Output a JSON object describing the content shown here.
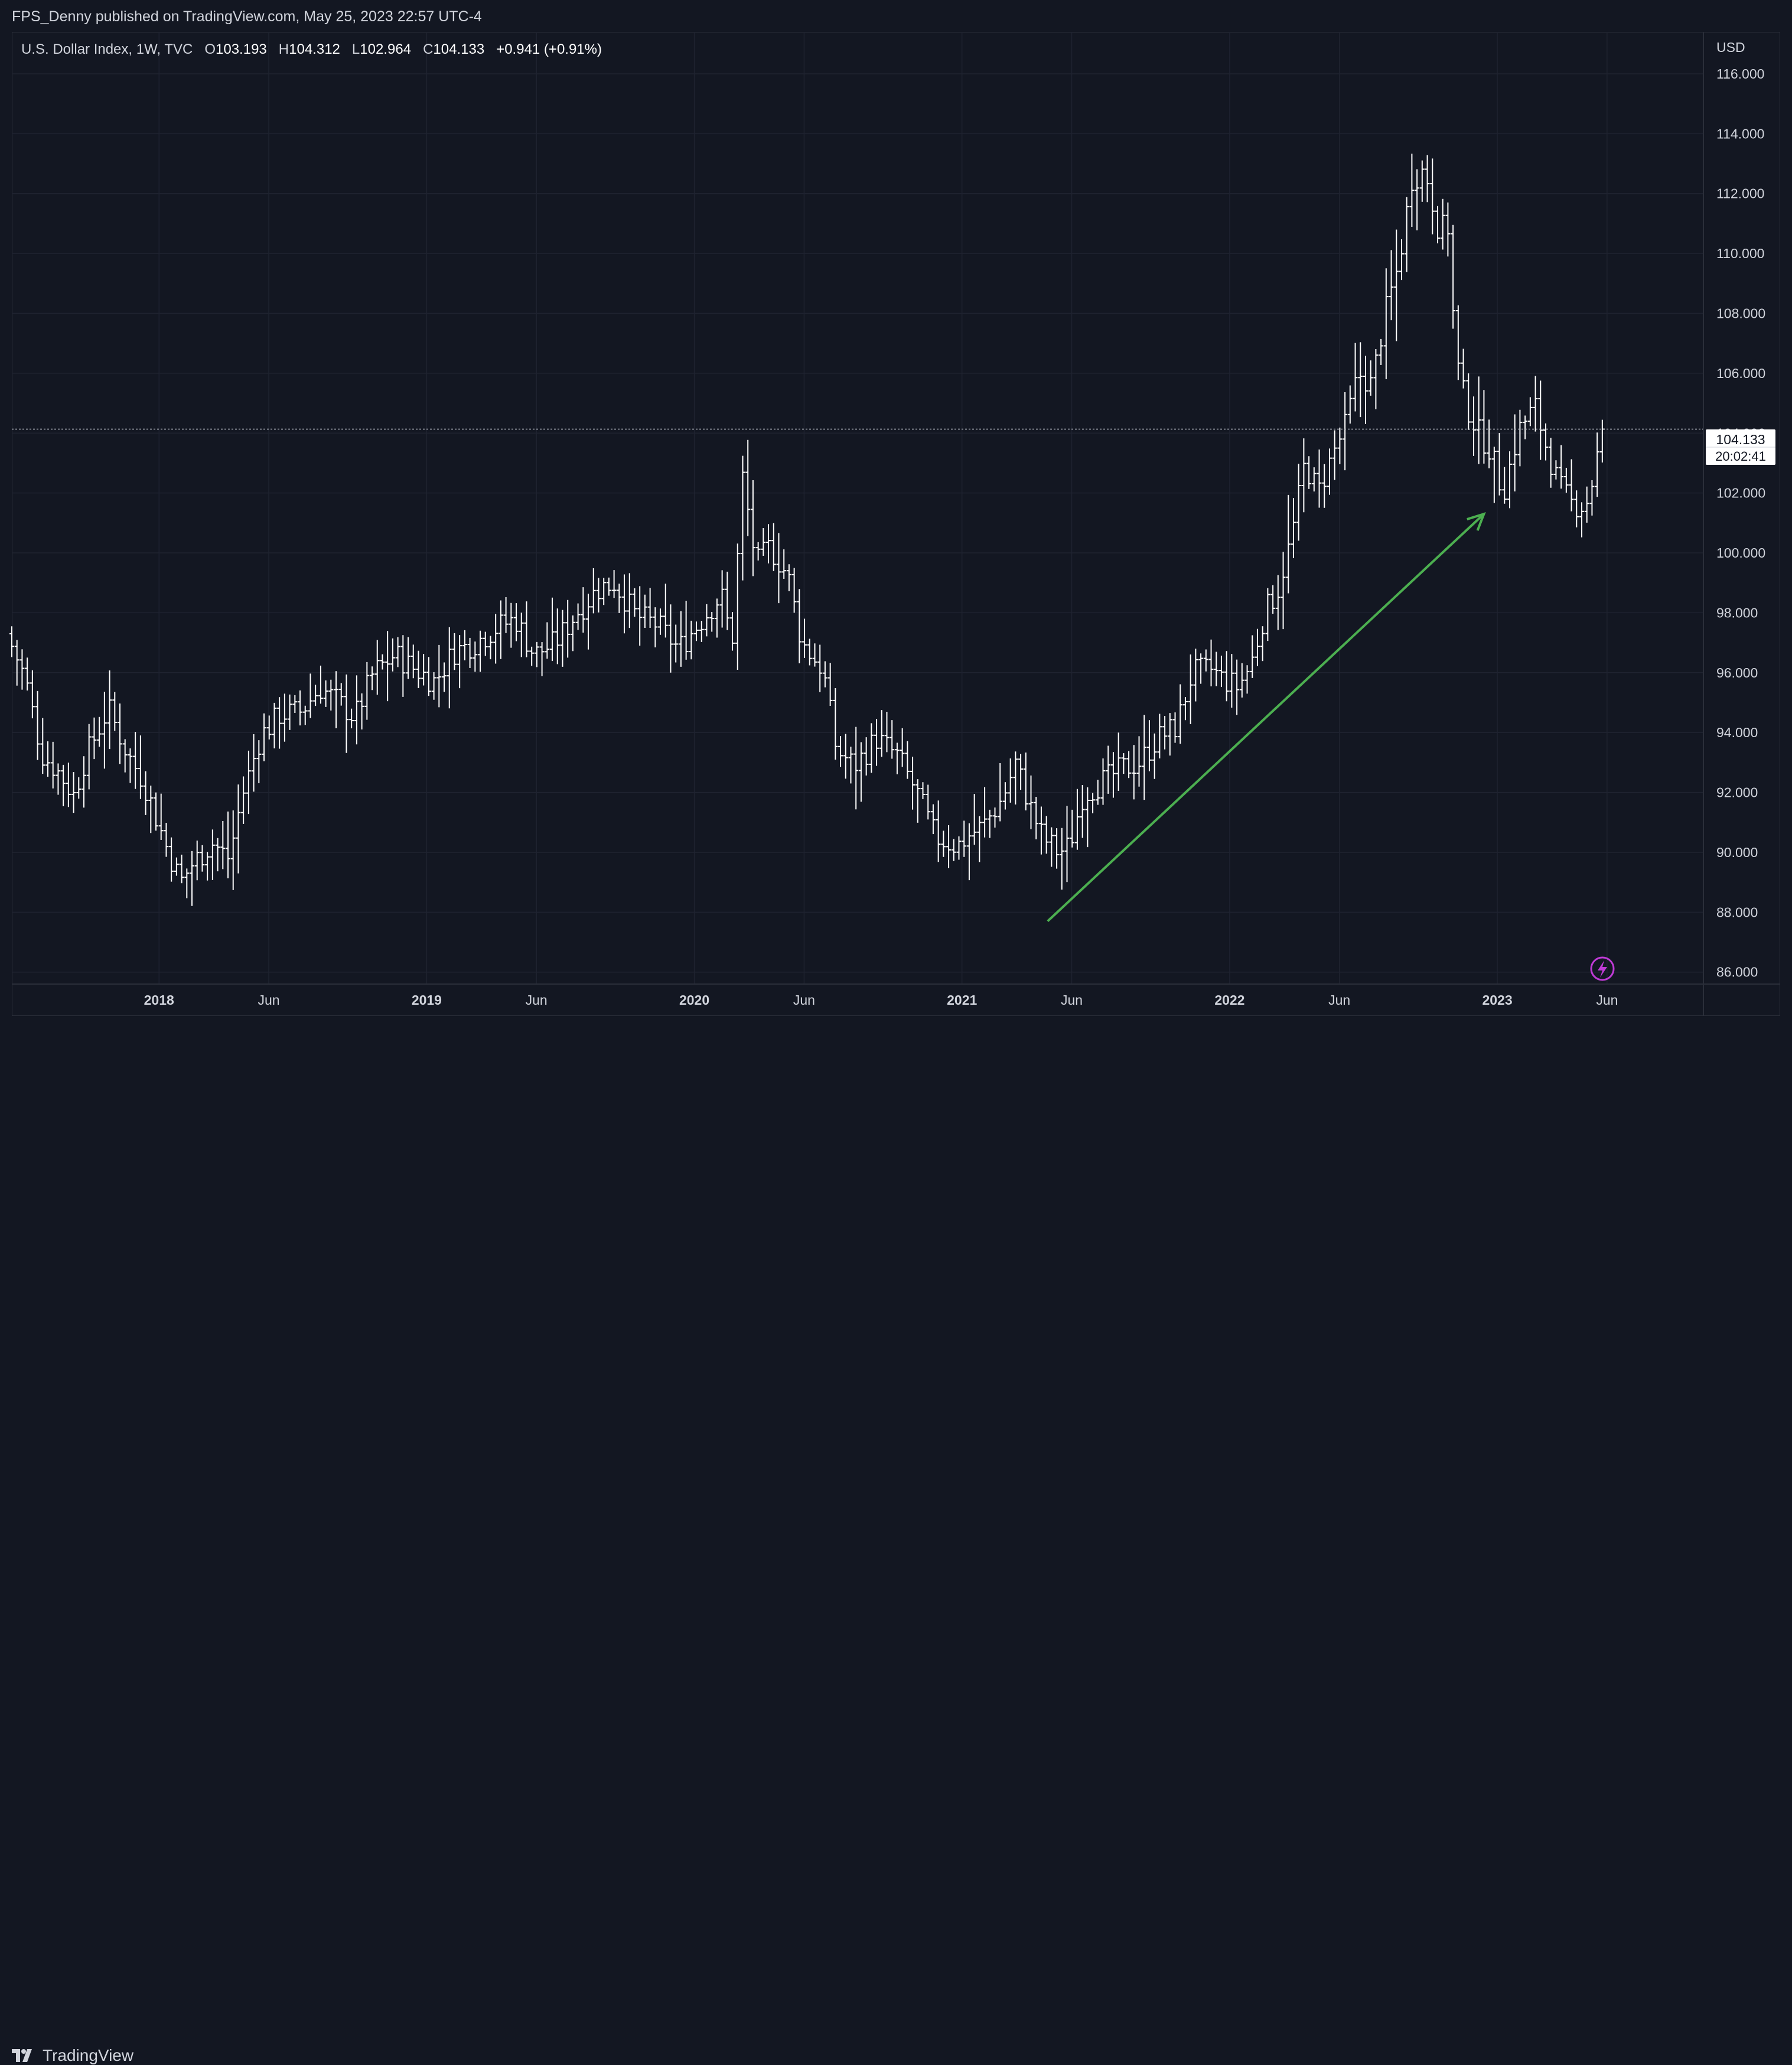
{
  "header": {
    "published": "FPS_Denny published on TradingView.com, May 25, 2023 22:57 UTC-4"
  },
  "legend": {
    "symbol": "U.S. Dollar Index, 1W, TVC",
    "o_label": "O",
    "o_value": "103.193",
    "h_label": "H",
    "h_value": "104.312",
    "l_label": "L",
    "l_value": "102.964",
    "c_label": "C",
    "c_value": "104.133",
    "change": "+0.941 (+0.91%)"
  },
  "price_axis": {
    "currency": "USD",
    "last_price": "104.133",
    "countdown": "20:02:41"
  },
  "footer": {
    "brand": "TradingView"
  },
  "colors": {
    "background": "#131722",
    "bars": "#ffffff",
    "grid": "#1f2330",
    "arrow": "#4caf50",
    "last_price_line": "#b2b5be"
  },
  "chart_data": {
    "type": "ohlc",
    "title": "U.S. Dollar Index, 1W, TVC",
    "ylim": [
      85.6,
      117.4
    ],
    "y_ticks": [
      "116.000",
      "114.000",
      "112.000",
      "110.000",
      "108.000",
      "106.000",
      "104.000",
      "102.000",
      "100.000",
      "98.000",
      "96.000",
      "94.000",
      "92.000",
      "90.000",
      "88.000",
      "86.000"
    ],
    "x_ticks": [
      {
        "t": 2018.0,
        "label": "2018",
        "major": true
      },
      {
        "t": 2018.41,
        "label": "Jun",
        "major": false
      },
      {
        "t": 2019.0,
        "label": "2019",
        "major": true
      },
      {
        "t": 2019.41,
        "label": "Jun",
        "major": false
      },
      {
        "t": 2020.0,
        "label": "2020",
        "major": true
      },
      {
        "t": 2020.41,
        "label": "Jun",
        "major": false
      },
      {
        "t": 2021.0,
        "label": "2021",
        "major": true
      },
      {
        "t": 2021.41,
        "label": "Jun",
        "major": false
      },
      {
        "t": 2022.0,
        "label": "2022",
        "major": true
      },
      {
        "t": 2022.41,
        "label": "Jun",
        "major": false
      },
      {
        "t": 2023.0,
        "label": "2023",
        "major": true
      },
      {
        "t": 2023.41,
        "label": "Jun",
        "major": false
      }
    ],
    "xlim": [
      2017.45,
      2023.77
    ],
    "last_close": 104.133,
    "annotation": {
      "type": "arrow",
      "from": [
        2021.32,
        87.7
      ],
      "to": [
        2022.95,
        101.3
      ]
    },
    "keypoints": [
      [
        2017.45,
        97.3
      ],
      [
        2017.52,
        95.8
      ],
      [
        2017.58,
        93.3
      ],
      [
        2017.65,
        92.6
      ],
      [
        2017.7,
        91.9
      ],
      [
        2017.75,
        93.3
      ],
      [
        2017.83,
        94.8
      ],
      [
        2017.9,
        93.3
      ],
      [
        2017.96,
        92.4
      ],
      [
        2018.05,
        90.1
      ],
      [
        2018.1,
        89.0
      ],
      [
        2018.15,
        89.7
      ],
      [
        2018.22,
        90.3
      ],
      [
        2018.28,
        89.8
      ],
      [
        2018.33,
        91.9
      ],
      [
        2018.4,
        93.9
      ],
      [
        2018.47,
        94.6
      ],
      [
        2018.55,
        94.7
      ],
      [
        2018.62,
        95.5
      ],
      [
        2018.68,
        95.1
      ],
      [
        2018.75,
        94.5
      ],
      [
        2018.82,
        96.0
      ],
      [
        2018.9,
        96.6
      ],
      [
        2018.96,
        96.2
      ],
      [
        2019.05,
        95.7
      ],
      [
        2019.12,
        96.7
      ],
      [
        2019.2,
        97.0
      ],
      [
        2019.28,
        97.5
      ],
      [
        2019.35,
        97.8
      ],
      [
        2019.42,
        96.6
      ],
      [
        2019.5,
        97.0
      ],
      [
        2019.58,
        98.0
      ],
      [
        2019.66,
        98.8
      ],
      [
        2019.72,
        99.0
      ],
      [
        2019.8,
        97.9
      ],
      [
        2019.88,
        97.6
      ],
      [
        2019.96,
        96.8
      ],
      [
        2020.05,
        97.8
      ],
      [
        2020.12,
        98.6
      ],
      [
        2020.16,
        97.0
      ],
      [
        2020.2,
        102.5
      ],
      [
        2020.25,
        99.6
      ],
      [
        2020.3,
        100.2
      ],
      [
        2020.37,
        99.2
      ],
      [
        2020.42,
        97.0
      ],
      [
        2020.5,
        96.1
      ],
      [
        2020.55,
        93.4
      ],
      [
        2020.62,
        92.9
      ],
      [
        2020.7,
        93.8
      ],
      [
        2020.78,
        93.2
      ],
      [
        2020.85,
        92.0
      ],
      [
        2020.92,
        90.5
      ],
      [
        2021.0,
        90.2
      ],
      [
        2021.05,
        90.6
      ],
      [
        2021.1,
        90.9
      ],
      [
        2021.17,
        91.8
      ],
      [
        2021.22,
        93.0
      ],
      [
        2021.27,
        91.6
      ],
      [
        2021.32,
        90.5
      ],
      [
        2021.38,
        90.0
      ],
      [
        2021.42,
        90.2
      ],
      [
        2021.47,
        91.9
      ],
      [
        2021.55,
        92.4
      ],
      [
        2021.62,
        92.8
      ],
      [
        2021.68,
        93.0
      ],
      [
        2021.75,
        93.8
      ],
      [
        2021.82,
        94.2
      ],
      [
        2021.88,
        96.0
      ],
      [
        2021.95,
        96.1
      ],
      [
        2021.99,
        95.8
      ],
      [
        2022.05,
        95.5
      ],
      [
        2022.1,
        96.3
      ],
      [
        2022.15,
        98.0
      ],
      [
        2022.2,
        98.8
      ],
      [
        2022.25,
        100.5
      ],
      [
        2022.3,
        103.0
      ],
      [
        2022.35,
        102.0
      ],
      [
        2022.4,
        103.2
      ],
      [
        2022.45,
        104.2
      ],
      [
        2022.5,
        106.0
      ],
      [
        2022.55,
        105.6
      ],
      [
        2022.6,
        108.0
      ],
      [
        2022.65,
        109.6
      ],
      [
        2022.7,
        112.5
      ],
      [
        2022.75,
        112.8
      ],
      [
        2022.8,
        110.8
      ],
      [
        2022.84,
        110.9
      ],
      [
        2022.86,
        106.7
      ],
      [
        2022.9,
        105.0
      ],
      [
        2022.95,
        104.0
      ],
      [
        2022.99,
        103.5
      ],
      [
        2023.04,
        102.0
      ],
      [
        2023.1,
        104.1
      ],
      [
        2023.16,
        104.9
      ],
      [
        2023.2,
        103.6
      ],
      [
        2023.25,
        102.2
      ],
      [
        2023.3,
        101.6
      ],
      [
        2023.35,
        101.6
      ],
      [
        2023.38,
        102.6
      ],
      [
        2023.41,
        104.13
      ]
    ]
  }
}
